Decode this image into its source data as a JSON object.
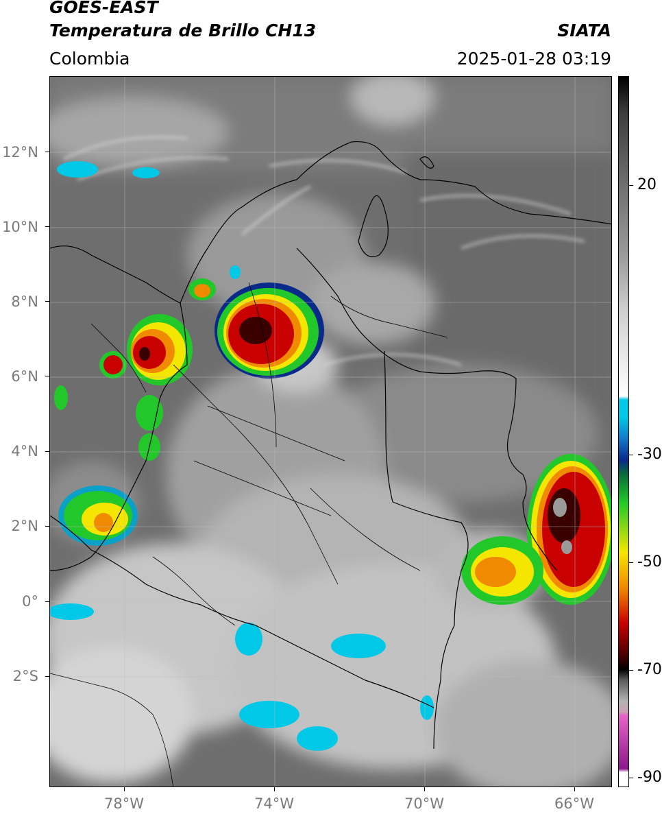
{
  "header": {
    "satellite": "GOES-EAST",
    "product": "Temperatura de Brillo CH13",
    "region": "Colombia",
    "source": "SIATA",
    "datetime": "2025-01-28 03:19"
  },
  "map": {
    "lat_labels": [
      "12°N",
      "10°N",
      "8°N",
      "6°N",
      "4°N",
      "2°N",
      "0°",
      "2°S"
    ],
    "lon_labels": [
      "78°W",
      "74°W",
      "70°W",
      "66°W"
    ],
    "lat_range": [
      -5,
      14
    ],
    "lon_range": [
      -80,
      -65
    ]
  },
  "colorbar": {
    "labels": [
      "20",
      "-30",
      "-50",
      "-70",
      "-90"
    ],
    "range": [
      -92,
      35
    ],
    "colors": {
      "warm": "#ffffff",
      "cyan": "#00c8e6",
      "blue": "#0a2a8a",
      "green": "#22c82a",
      "yellow": "#f4e600",
      "orange": "#f08a00",
      "red": "#c80000",
      "darkred": "#3a0000",
      "black": "#000000",
      "pink": "#e664c8",
      "purple": "#8a1a8a"
    }
  }
}
